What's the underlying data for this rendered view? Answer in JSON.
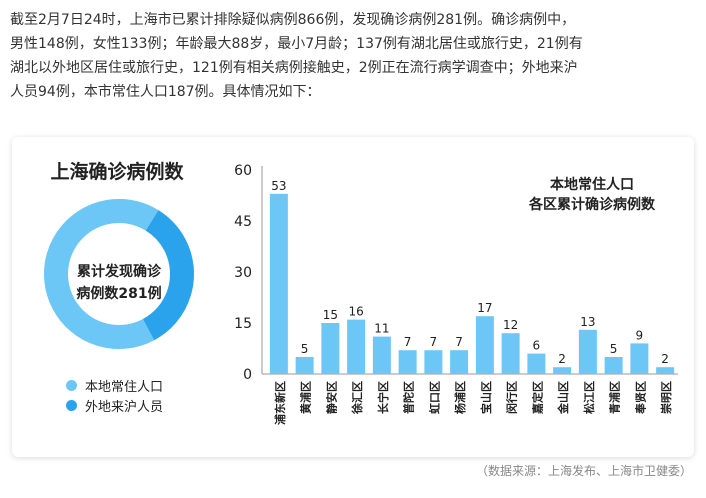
{
  "intro": {
    "line1": "截至2月7日24时，上海市已累计排除疑似病例866例，发现确诊病例281例。确诊病例中，",
    "line2": "男性148例，女性133例；年龄最大88岁，最小7月龄；137例有湖北居住或旅行史，21例有",
    "line3": "湖北以外地区居住或旅行史，121例有相关病例接触史，2例正在流行病学调查中；外地来沪",
    "line4": "人员94例，本市常住人口187例。具体情况如下："
  },
  "donut": {
    "title": "上海确诊病例数",
    "center_line1": "累计发现确诊",
    "center_line2": "病例数281例",
    "segments": [
      {
        "label": "本地常住人口",
        "value": 187,
        "color": "#6cc7f7"
      },
      {
        "label": "外地来沪人员",
        "value": 94,
        "color": "#2aa2ec"
      }
    ]
  },
  "colors": {
    "bar": "#6cc7f7",
    "axis": "#999999",
    "text": "#222222"
  },
  "chart_data": {
    "type": "bar",
    "title_line1": "本地常住人口",
    "title_line2": "各区累计确诊病例数",
    "categories": [
      "浦东新区",
      "黄浦区",
      "静安区",
      "徐汇区",
      "长宁区",
      "普陀区",
      "虹口区",
      "杨浦区",
      "宝山区",
      "闵行区",
      "嘉定区",
      "金山区",
      "松江区",
      "青浦区",
      "奉贤区",
      "崇明区"
    ],
    "values": [
      53,
      5,
      15,
      16,
      11,
      7,
      7,
      7,
      17,
      12,
      6,
      2,
      13,
      5,
      9,
      2
    ],
    "yticks": [
      0,
      15,
      30,
      45,
      60
    ],
    "ylim": [
      0,
      60
    ]
  },
  "source": "（数据来源：上海发布、上海市卫健委）"
}
